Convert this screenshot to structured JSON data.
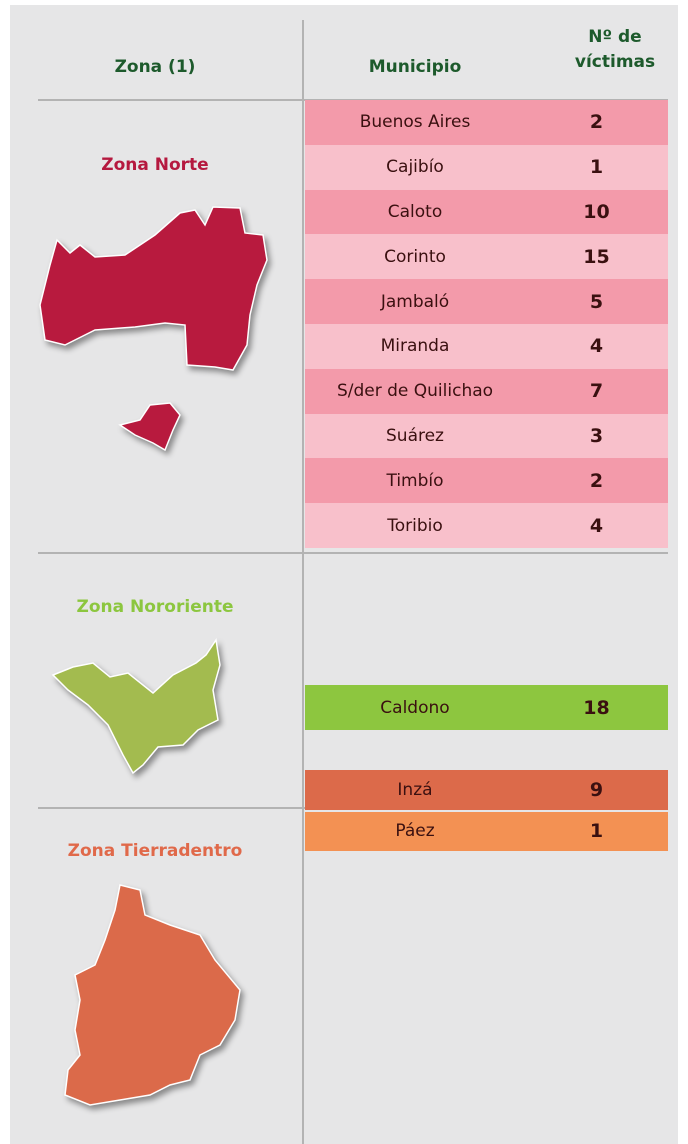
{
  "header": {
    "zone": "Zona (1)",
    "municipality": "Municipio",
    "victims": "Nº de víctimas"
  },
  "zones": [
    {
      "name": "Zona Norte",
      "rows": [
        {
          "municipality": "Buenos Aires",
          "victims": 2
        },
        {
          "municipality": "Cajibío",
          "victims": 1
        },
        {
          "municipality": "Caloto",
          "victims": 10
        },
        {
          "municipality": "Corinto",
          "victims": 15
        },
        {
          "municipality": "Jambaló",
          "victims": 5
        },
        {
          "municipality": "Miranda",
          "victims": 4
        },
        {
          "municipality": "S/der de Quilichao",
          "victims": 7
        },
        {
          "municipality": "Suárez",
          "victims": 3
        },
        {
          "municipality": "Timbío",
          "victims": 2
        },
        {
          "municipality": "Toribio",
          "victims": 4
        }
      ]
    },
    {
      "name": "Zona Nororiente",
      "rows": [
        {
          "municipality": "Caldono",
          "victims": 18
        }
      ]
    },
    {
      "name": "Zona Tierradentro",
      "rows": [
        {
          "municipality": "Inzá",
          "victims": 9
        },
        {
          "municipality": "Páez",
          "victims": 1
        }
      ]
    }
  ]
}
